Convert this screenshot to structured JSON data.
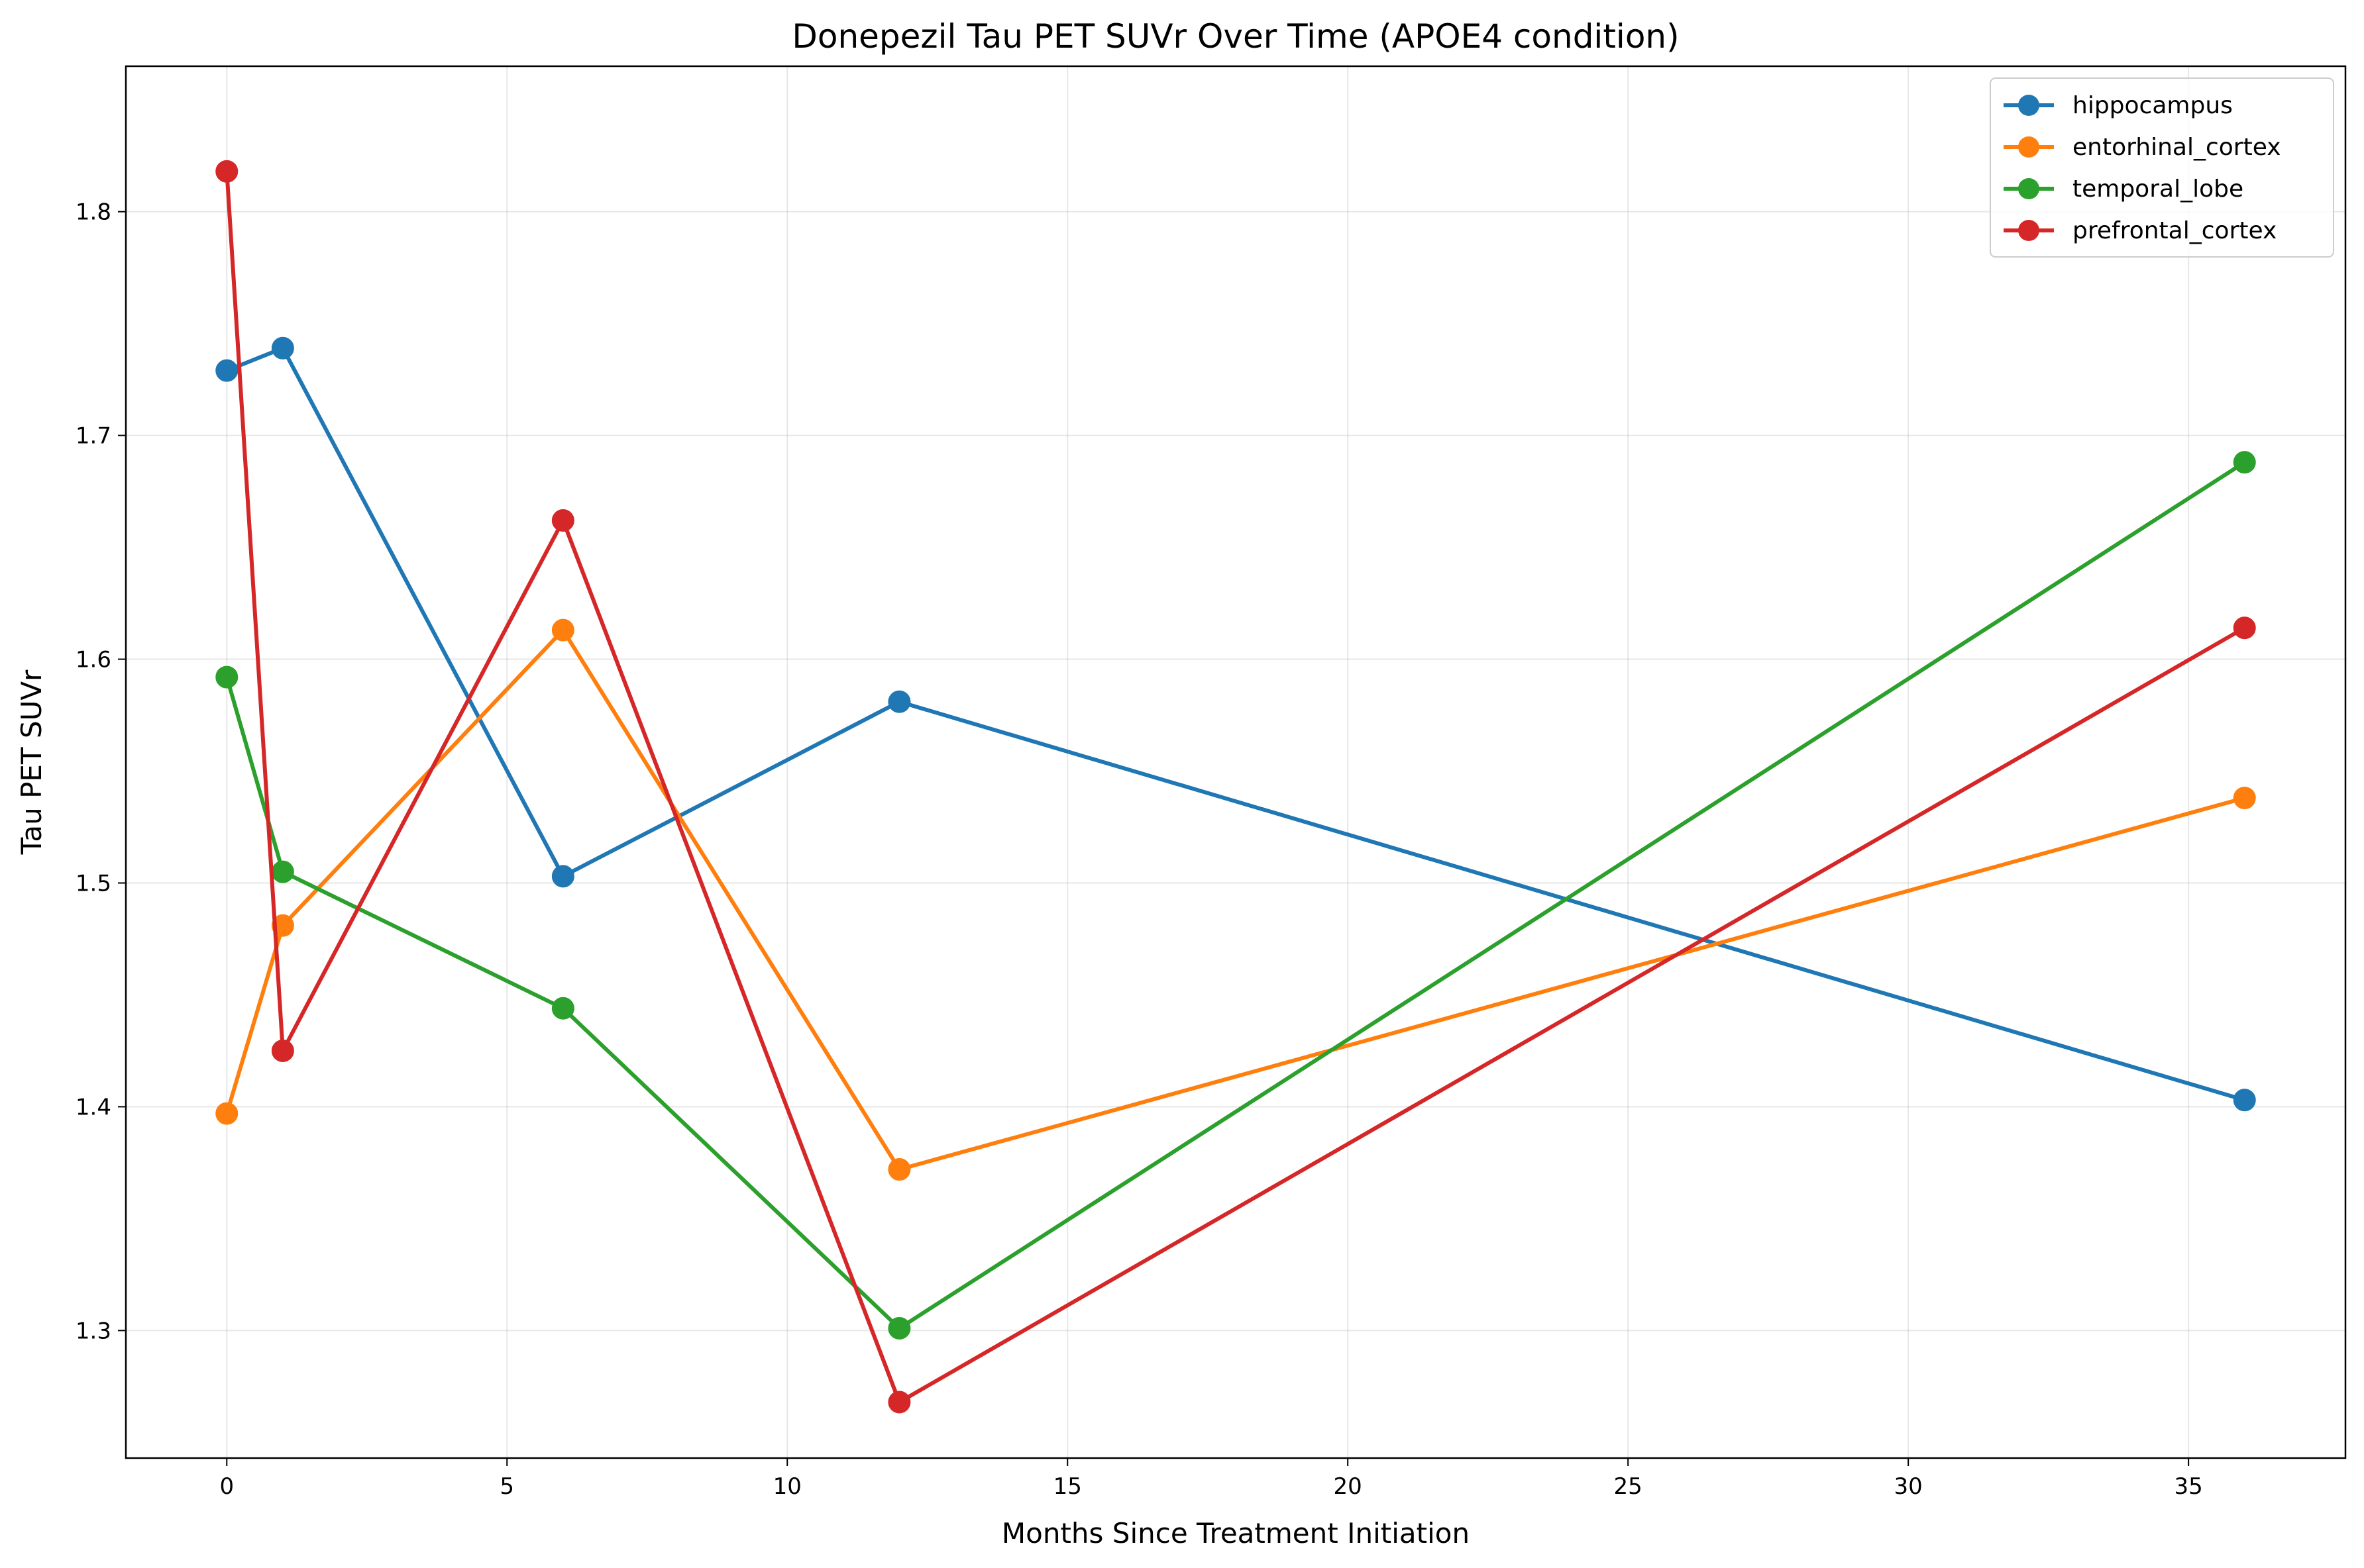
{
  "chart_data": {
    "type": "line",
    "title": "Donepezil Tau PET SUVr Over Time (APOE4 condition)",
    "xlabel": "Months Since Treatment Initiation",
    "ylabel": "Tau PET SUVr",
    "xlim": [
      -1.8,
      37.8
    ],
    "ylim": [
      1.243,
      1.865
    ],
    "xticks": [
      0,
      5,
      10,
      15,
      20,
      25,
      30,
      35
    ],
    "yticks": [
      1.3,
      1.4,
      1.5,
      1.6,
      1.7,
      1.8
    ],
    "grid": true,
    "legend_position": "top-right",
    "series": [
      {
        "name": "hippocampus",
        "color": "#1f77b4",
        "x": [
          0,
          1,
          6,
          12,
          36
        ],
        "y": [
          1.729,
          1.739,
          1.503,
          1.581,
          1.403
        ]
      },
      {
        "name": "entorhinal_cortex",
        "color": "#ff7f0e",
        "x": [
          0,
          1,
          6,
          12,
          36
        ],
        "y": [
          1.397,
          1.481,
          1.613,
          1.372,
          1.538
        ]
      },
      {
        "name": "temporal_lobe",
        "color": "#2ca02c",
        "x": [
          0,
          1,
          6,
          12,
          36
        ],
        "y": [
          1.592,
          1.505,
          1.444,
          1.301,
          1.688
        ]
      },
      {
        "name": "prefrontal_cortex",
        "color": "#d62728",
        "x": [
          0,
          1,
          6,
          12,
          36
        ],
        "y": [
          1.818,
          1.425,
          1.662,
          1.268,
          1.614
        ]
      }
    ]
  }
}
